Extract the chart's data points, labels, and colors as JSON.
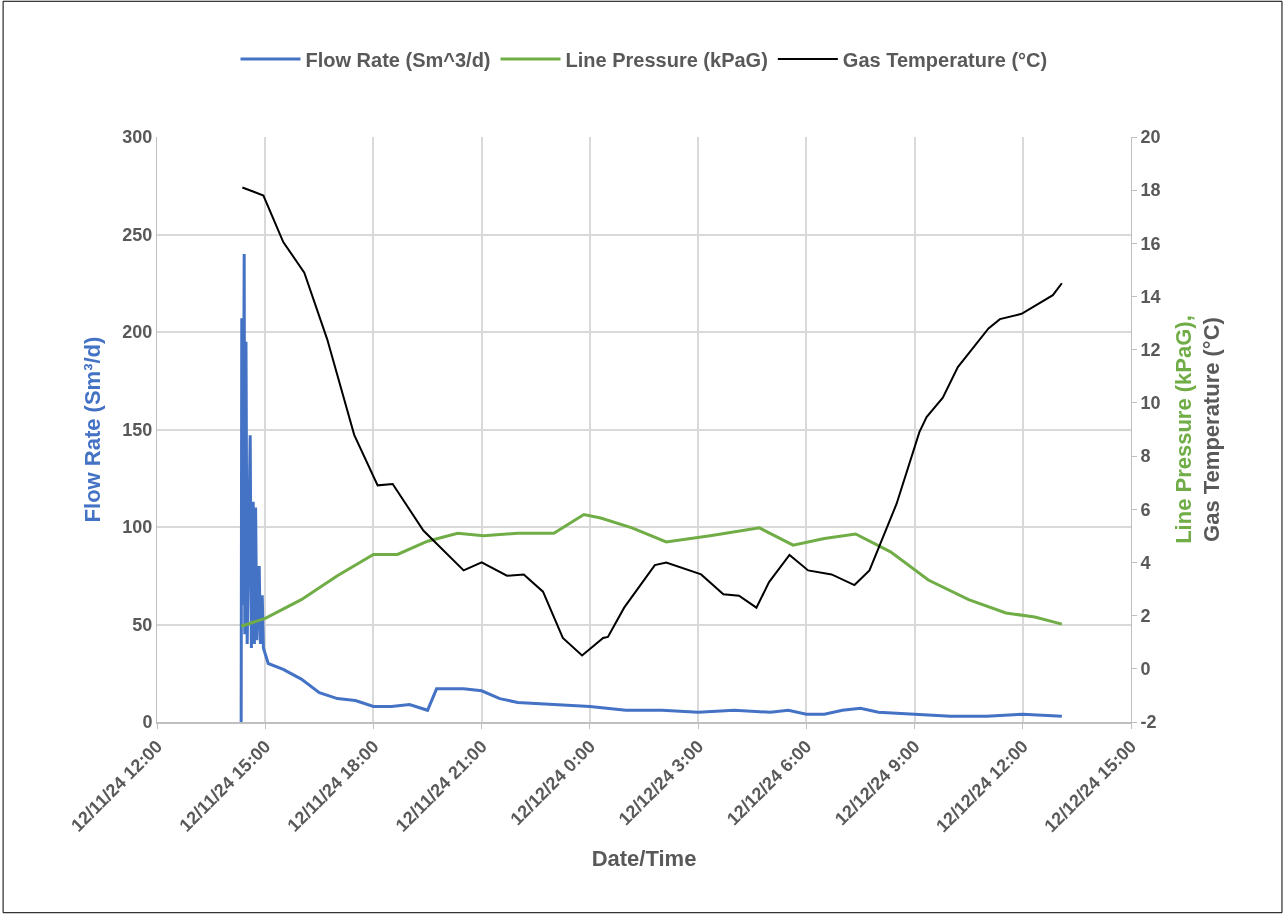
{
  "chart_data": {
    "type": "line",
    "xlabel": "Date/Time",
    "ylabel": "Flow Rate (Sm³/d)",
    "y2label": "Line Pressure (kPaG),\nGas Temperature (°C)",
    "xlim": [
      "--12-11T12:00",
      "--12-12T15:00"
    ],
    "xticks": [
      {
        "value": "--12-11T12:00",
        "label": "12/11/24 12:00"
      },
      {
        "value": "--12-11T15:00",
        "label": "12/11/24 15:00"
      },
      {
        "value": "--12-11T18:00",
        "label": "12/11/24 18:00"
      },
      {
        "value": "--12-11T21:00",
        "label": "12/11/24 21:00"
      },
      {
        "value": "--12-12T00:00",
        "label": "12/12/24 0:00"
      },
      {
        "value": "--12-12T03:00",
        "label": "12/12/24 3:00"
      },
      {
        "value": "--12-12T06:00",
        "label": "12/12/24 6:00"
      },
      {
        "value": "--12-12T09:00",
        "label": "12/12/24 9:00"
      },
      {
        "value": "--12-12T12:00",
        "label": "12/12/24 12:00"
      },
      {
        "value": "--12-12T15:00",
        "label": "12/12/24 15:00"
      }
    ],
    "ylim": [
      0,
      300
    ],
    "yticks": [
      0,
      50,
      100,
      150,
      200,
      250,
      300
    ],
    "y2lim": [
      -2,
      20
    ],
    "y2ticks": [
      -2,
      0,
      2,
      4,
      6,
      8,
      10,
      12,
      14,
      16,
      18,
      20
    ],
    "grid": true,
    "legend": "top",
    "marker": "none",
    "line_style": "solid",
    "series": [
      {
        "name": "Flow Rate (Sm^3/d)",
        "color": "#4472c4",
        "x": [
          "--12-11T14:20",
          "--12-11T14:21",
          "--12-11T14:23",
          "--12-11T14:25",
          "--12-11T14:26",
          "--12-11T14:28",
          "--12-11T14:30",
          "--12-11T14:35",
          "--12-11T14:37",
          "--12-11T14:40",
          "--12-11T14:42",
          "--12-11T14:44",
          "--12-11T14:46",
          "--12-11T14:50",
          "--12-11T14:52",
          "--12-11T14:55",
          "--12-11T14:57",
          "--12-11T15:05",
          "--12-11T15:30",
          "--12-11T16:00",
          "--12-11T16:30",
          "--12-11T17:00",
          "--12-11T17:30",
          "--12-11T18:00",
          "--12-11T18:30",
          "--12-11T19:00",
          "--12-11T19:30",
          "--12-11T19:45",
          "--12-11T20:30",
          "--12-11T21:00",
          "--12-11T21:30",
          "--12-11T22:00",
          "--12-11T23:00",
          "--12-12T00:00",
          "--12-12T01:00",
          "--12-12T02:00",
          "--12-12T03:00",
          "--12-12T04:00",
          "--12-12T05:00",
          "--12-12T05:30",
          "--12-12T06:00",
          "--12-12T06:30",
          "--12-12T07:00",
          "--12-12T07:30",
          "--12-12T08:00",
          "--12-12T09:00",
          "--12-12T10:00",
          "--12-12T11:00",
          "--12-12T12:00",
          "--12-12T13:05"
        ],
        "values": [
          0,
          207,
          60,
          240,
          45,
          195,
          40,
          147,
          38,
          113,
          40,
          110,
          42,
          80,
          40,
          65,
          38,
          30,
          27,
          22,
          15,
          12,
          11,
          8,
          8,
          9,
          6,
          17,
          17,
          16,
          12,
          10,
          9,
          8,
          6,
          6,
          5,
          6,
          5,
          6,
          4,
          4,
          6,
          7,
          5,
          4,
          3,
          3,
          4,
          3
        ]
      },
      {
        "name": "Line Pressure (kPaG)",
        "color": "#70ad47",
        "axis": "y2",
        "x": [
          "--12-11T14:20",
          "--12-11T15:00",
          "--12-11T16:00",
          "--12-11T17:00",
          "--12-11T18:00",
          "--12-11T18:40",
          "--12-11T19:30",
          "--12-11T20:20",
          "--12-11T21:03",
          "--12-11T22:00",
          "--12-11T23:00",
          "--12-11T23:50",
          "--12-12T00:18",
          "--12-12T01:10",
          "--12-12T02:07",
          "--12-12T03:20",
          "--12-12T04:42",
          "--12-12T05:38",
          "--12-12T06:30",
          "--12-12T07:22",
          "--12-12T08:20",
          "--12-12T09:23",
          "--12-12T10:30",
          "--12-12T11:32",
          "--12-12T12:20",
          "--12-12T13:05"
        ],
        "values": [
          1.6,
          1.9,
          2.6,
          3.5,
          4.3,
          4.3,
          4.8,
          5.1,
          5.0,
          5.1,
          5.1,
          5.8,
          5.67,
          5.3,
          4.77,
          5.0,
          5.3,
          4.65,
          4.9,
          5.07,
          4.4,
          3.34,
          2.6,
          2.1,
          1.95,
          1.68
        ]
      },
      {
        "name": "Gas Temperature (°C)",
        "color": "#000000",
        "axis": "y2",
        "x": [
          "--12-11T14:22",
          "--12-11T14:57",
          "--12-11T15:30",
          "--12-11T16:05",
          "--12-11T16:43",
          "--12-11T17:28",
          "--12-11T18:07",
          "--12-11T18:32",
          "--12-11T19:23",
          "--12-11T20:30",
          "--12-11T21:00",
          "--12-11T21:42",
          "--12-11T22:10",
          "--12-11T22:42",
          "--12-11T23:15",
          "--12-11T23:47",
          "--12-12T00:22",
          "--12-12T00:30",
          "--12-12T00:57",
          "--12-12T01:48",
          "--12-12T02:07",
          "--12-12T03:05",
          "--12-12T03:42",
          "--12-12T04:08",
          "--12-12T04:37",
          "--12-12T04:58",
          "--12-12T05:32",
          "--12-12T06:03",
          "--12-12T06:42",
          "--12-12T07:20",
          "--12-12T07:45",
          "--12-12T08:30",
          "--12-12T09:08",
          "--12-12T09:20",
          "--12-12T09:47",
          "--12-12T10:12",
          "--12-12T11:03",
          "--12-12T11:22",
          "--12-12T11:58",
          "--12-12T12:50",
          "--12-12T13:05"
        ],
        "values": [
          18.1,
          17.8,
          16.05,
          14.9,
          12.4,
          8.8,
          6.9,
          6.95,
          5.2,
          3.7,
          4.0,
          3.5,
          3.55,
          2.9,
          1.16,
          0.5,
          1.16,
          1.2,
          2.3,
          3.9,
          4.0,
          3.55,
          2.8,
          2.75,
          2.3,
          3.26,
          4.28,
          3.7,
          3.55,
          3.15,
          3.7,
          6.2,
          8.9,
          9.47,
          10.2,
          11.35,
          12.8,
          13.15,
          13.35,
          14.05,
          14.5
        ]
      }
    ]
  }
}
